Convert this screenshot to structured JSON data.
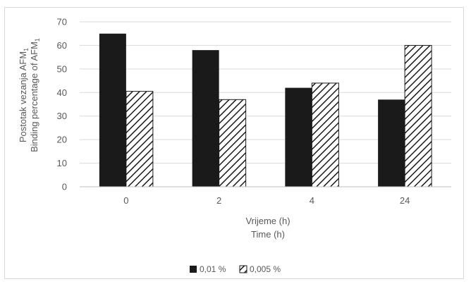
{
  "chart_data": {
    "type": "bar",
    "categories": [
      "0",
      "2",
      "4",
      "24"
    ],
    "series": [
      {
        "name": "0,01 %",
        "values": [
          65,
          58,
          42,
          37
        ],
        "color": "#1a1a1a",
        "pattern": "solid"
      },
      {
        "name": "0,005 %",
        "values": [
          40.5,
          37,
          44,
          60
        ],
        "color": "#1a1a1a",
        "pattern": "diagonal-hatch"
      }
    ],
    "ylim": [
      0,
      70
    ],
    "yticks": [
      "0",
      "10",
      "20",
      "30",
      "40",
      "50",
      "60",
      "70"
    ],
    "ylabel_line1": "Postotak vezanja AFM",
    "ylabel_line2": "Binding percentage of AFM",
    "ylabel_subscript": "1",
    "xlabel_line1": "Vrijeme (h)",
    "xlabel_line2": "Time (h)",
    "grid": true,
    "legend_position": "bottom-center",
    "gridline_color": "#d9d9d9"
  }
}
